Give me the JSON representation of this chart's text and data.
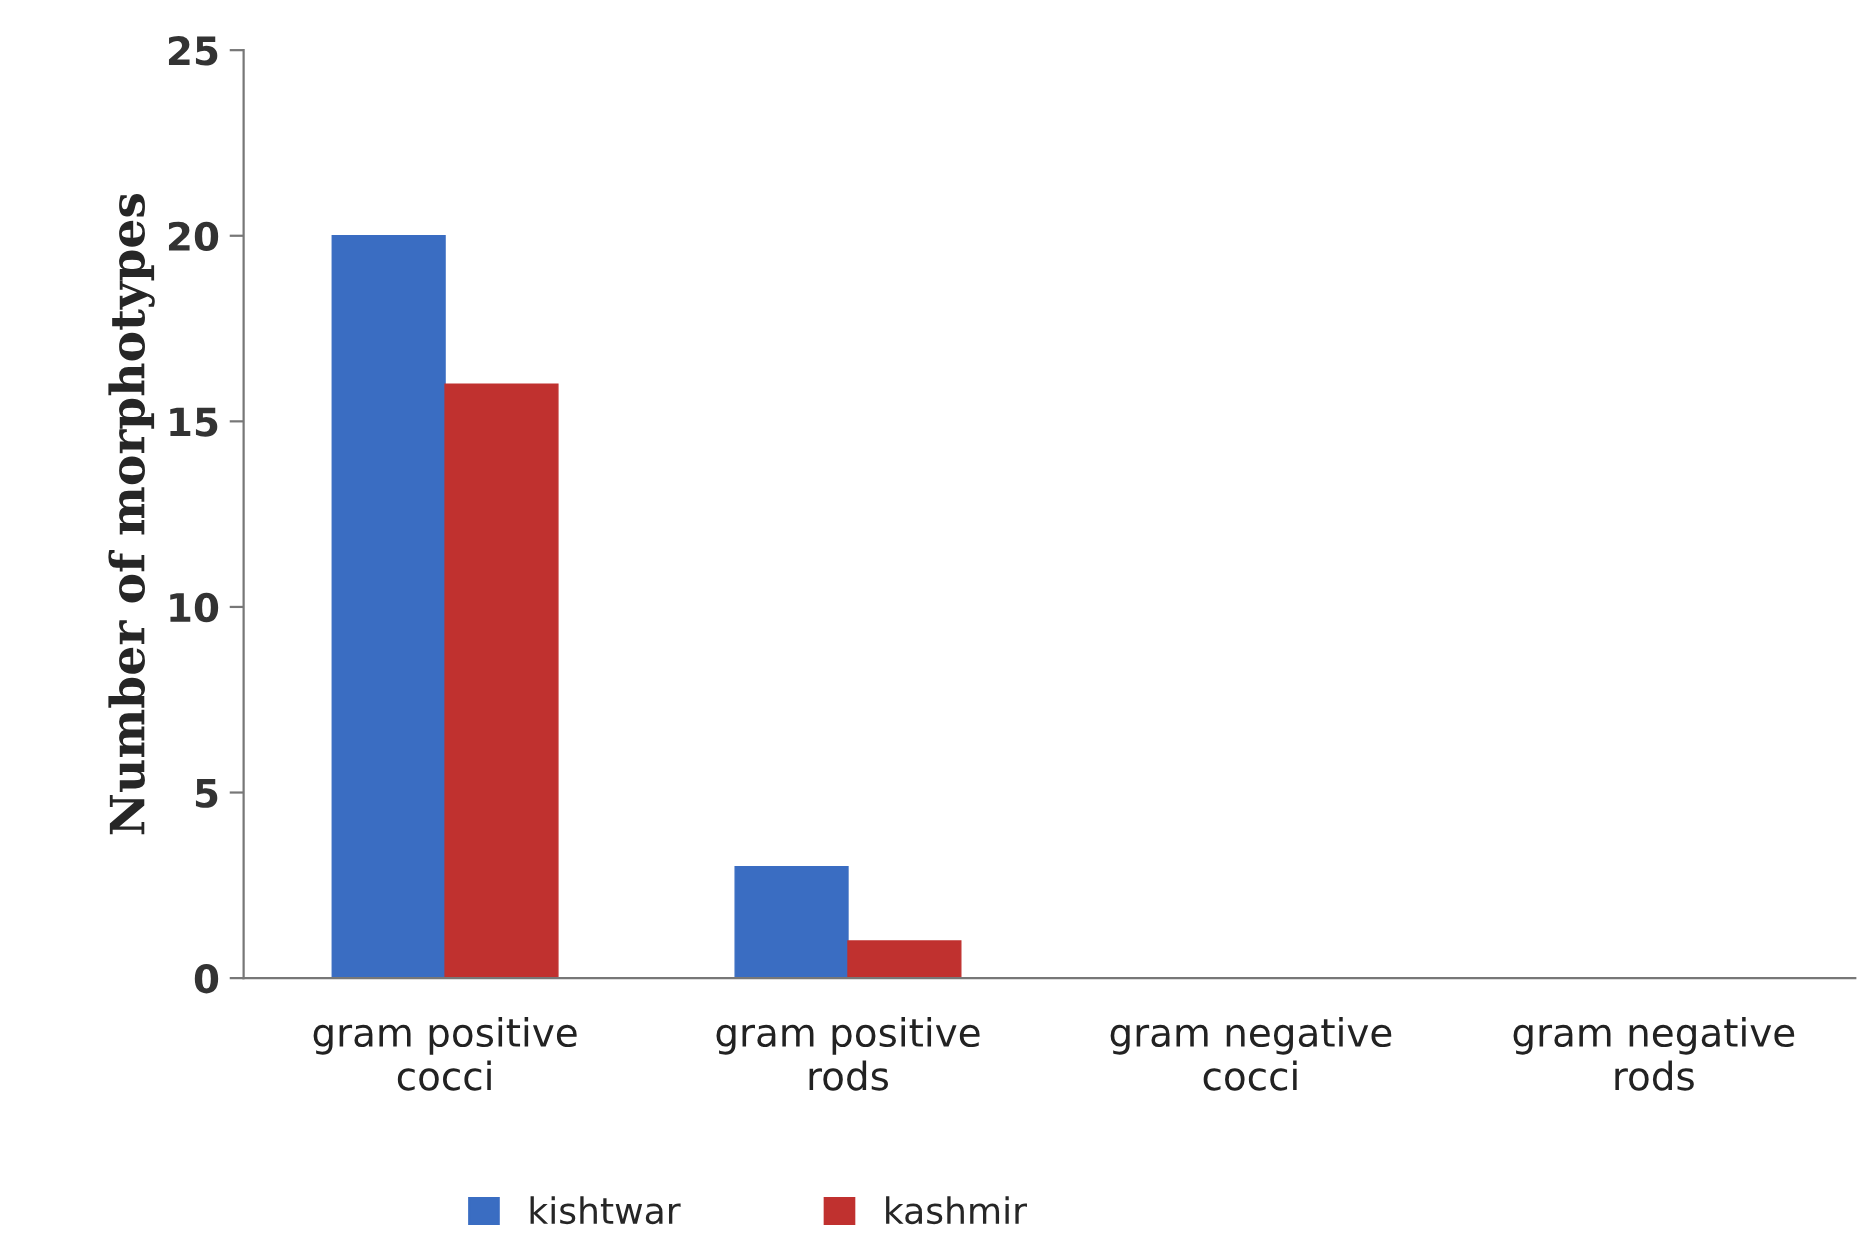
{
  "chart_data": {
    "type": "bar",
    "ylabel": "Number of morphotypes",
    "categories": [
      "gram positive\ncocci",
      "gram positive\nrods",
      "gram negative\ncocci",
      "gram negative\nrods"
    ],
    "series": [
      {
        "name": "kishtwar",
        "color": "#3a6dc2",
        "values": [
          20,
          3,
          0,
          0
        ]
      },
      {
        "name": "kashmir",
        "color": "#c0312f",
        "values": [
          16,
          1,
          0,
          0
        ]
      }
    ],
    "ylim": [
      0,
      25
    ],
    "yticks": [
      0,
      5,
      10,
      15,
      20,
      25
    ],
    "grid": false,
    "legend": "bottom"
  }
}
